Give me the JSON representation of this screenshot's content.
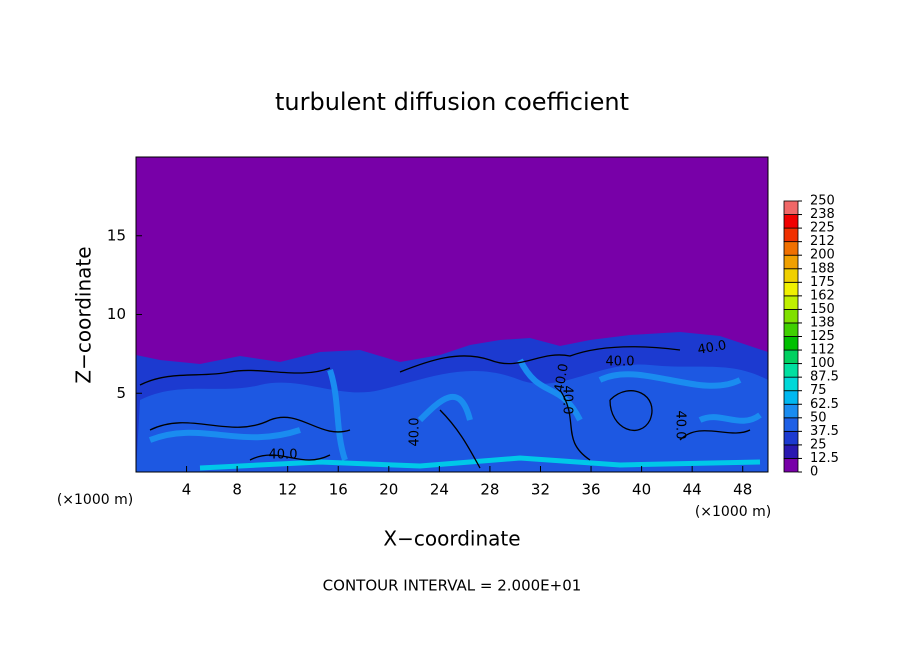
{
  "chart_data": {
    "type": "contour",
    "title": "turbulent diffusion coefficient",
    "x_label": "X−coordinate",
    "y_label": "Z−coordinate",
    "x_unit": "(×1000 m)",
    "y_unit": "(×1000 m)",
    "footnote": "CONTOUR INTERVAL = 2.000E+01",
    "xlim": [
      0,
      50
    ],
    "ylim": [
      0,
      20
    ],
    "xticks": [
      4,
      8,
      12,
      16,
      20,
      24,
      28,
      32,
      36,
      40,
      44,
      48
    ],
    "yticks": [
      5,
      10,
      15
    ],
    "contour_labels": [
      "40.0",
      "40.0",
      "40.0",
      "40.0",
      "40.0",
      "40.0",
      "40.0"
    ],
    "colorbar": {
      "levels": [
        0,
        12.5,
        25,
        37.5,
        50,
        62.5,
        75,
        87.5,
        100,
        {
          "value": 112.5,
          "label": "112"
        },
        125,
        {
          "value": 137.5,
          "label": "138"
        },
        150,
        {
          "value": 162.5,
          "label": "162"
        },
        175,
        {
          "value": 187.5,
          "label": "188"
        },
        200,
        {
          "value": 212.5,
          "label": "212"
        },
        225,
        {
          "value": 237.5,
          "label": "238"
        },
        250
      ],
      "colors": [
        "#7800a8",
        "#2a18b0",
        "#1c3ad0",
        "#1e60e6",
        "#1a8cf0",
        "#00b8f0",
        "#00d8d8",
        "#00e0a0",
        "#00d060",
        "#00c000",
        "#40d000",
        "#80e000",
        "#c0f000",
        "#f0f000",
        "#f0d000",
        "#f0a000",
        "#f07000",
        "#f03000",
        "#f00000",
        "#f06868"
      ]
    }
  }
}
